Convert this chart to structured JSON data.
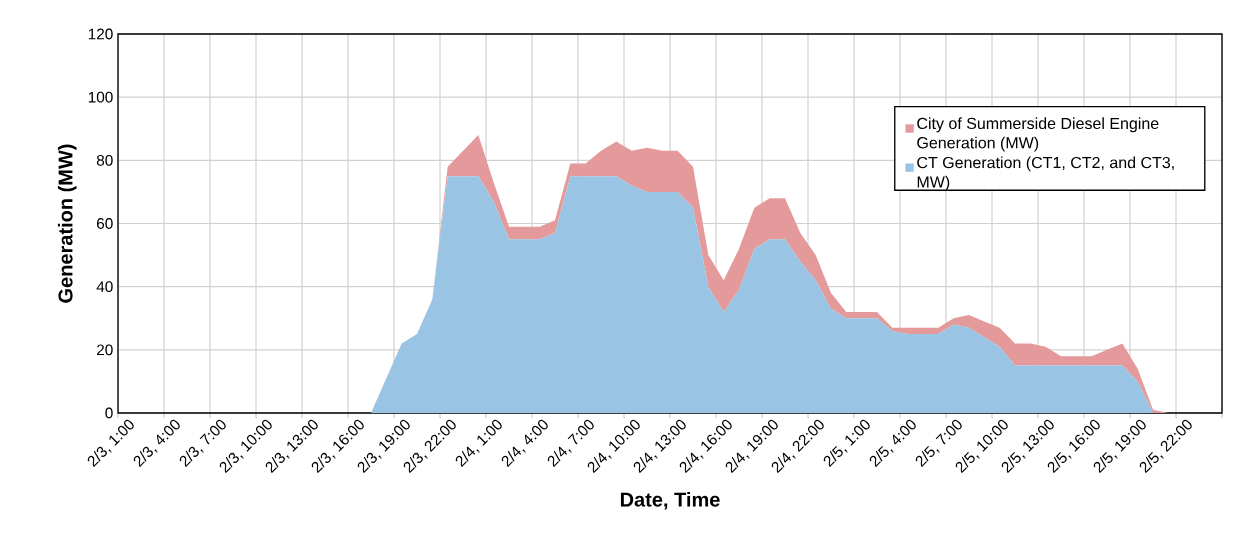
{
  "chart_data": {
    "type": "area",
    "stacked": true,
    "xlabel": "Date, Time",
    "ylabel": "Generation (MW)",
    "categories": [
      "2/3, 1:00",
      null,
      null,
      "2/3, 4:00",
      null,
      null,
      "2/3, 7:00",
      null,
      null,
      "2/3, 10:00",
      null,
      null,
      "2/3, 13:00",
      null,
      null,
      "2/3, 16:00",
      null,
      null,
      "2/3, 19:00",
      null,
      null,
      "2/3, 22:00",
      null,
      null,
      "2/4, 1:00",
      null,
      null,
      "2/4, 4:00",
      null,
      null,
      "2/4, 7:00",
      null,
      null,
      "2/4, 10:00",
      null,
      null,
      "2/4, 13:00",
      null,
      null,
      "2/4, 16:00",
      null,
      null,
      "2/4, 19:00",
      null,
      null,
      "2/4, 22:00",
      null,
      null,
      "2/5, 1:00",
      null,
      null,
      "2/5, 4:00",
      null,
      null,
      "2/5, 7:00",
      null,
      null,
      "2/5, 10:00",
      null,
      null,
      "2/5, 13:00",
      null,
      null,
      "2/5, 16:00",
      null,
      null,
      "2/5, 19:00",
      null,
      null,
      "2/5, 22:00",
      null,
      null
    ],
    "series": [
      {
        "name": "CT Generation (CT1, CT2, and CT3, MW)",
        "color": "#9ac4e4",
        "values": [
          0,
          0,
          0,
          0,
          0,
          0,
          0,
          0,
          0,
          0,
          0,
          0,
          0,
          0,
          0,
          0,
          0,
          11,
          22,
          25,
          36,
          75,
          75,
          75,
          67,
          55,
          55,
          55,
          57,
          75,
          75,
          75,
          75,
          72,
          70,
          70,
          70,
          65,
          40,
          32,
          39,
          52,
          55,
          55,
          48,
          42,
          33,
          30,
          30,
          30,
          26,
          25,
          25,
          25,
          28,
          27,
          24,
          21,
          15,
          15,
          15,
          15,
          15,
          15,
          15,
          15,
          10,
          0,
          0,
          0,
          0,
          0
        ]
      },
      {
        "name": "City of Summerside Diesel Engine Generation (MW)",
        "color": "#e49a9a",
        "values": [
          0,
          0,
          0,
          0,
          0,
          0,
          0,
          0,
          0,
          0,
          0,
          0,
          0,
          0,
          0,
          0,
          0,
          0,
          0,
          0,
          0,
          3,
          8,
          13,
          6,
          4,
          4,
          4,
          4,
          4,
          4,
          8,
          11,
          11,
          14,
          13,
          13,
          13,
          10,
          10,
          13,
          13,
          13,
          13,
          9,
          8,
          5,
          2,
          2,
          2,
          1,
          2,
          2,
          2,
          2,
          4,
          5,
          6,
          7,
          7,
          6,
          3,
          3,
          3,
          5,
          7,
          4,
          1,
          0,
          0,
          0,
          0
        ]
      }
    ],
    "ylim": [
      0,
      120
    ],
    "yticks": [
      0,
      20,
      40,
      60,
      80,
      100,
      120
    ],
    "grid": true,
    "legend": "right"
  }
}
